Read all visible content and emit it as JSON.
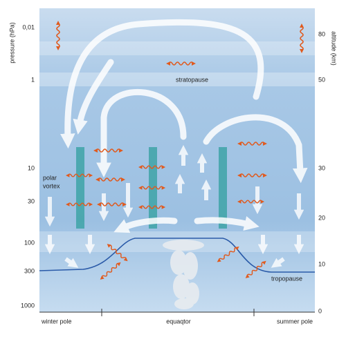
{
  "axes": {
    "left": {
      "title": "pressure (hPa)",
      "ticks": [
        "0,01",
        "1",
        "10",
        "30",
        "100",
        "300",
        "1000"
      ]
    },
    "right": {
      "title": "altitude (km)",
      "ticks": [
        "80",
        "50",
        "30",
        "20",
        "10",
        "0"
      ]
    }
  },
  "labels": {
    "stratopause": "stratopause",
    "polar_vortex": [
      "polar",
      "vortex"
    ],
    "tropopause": "tropopause"
  },
  "bottom": [
    "winter pole",
    "equaqtor",
    "summer pole"
  ]
}
